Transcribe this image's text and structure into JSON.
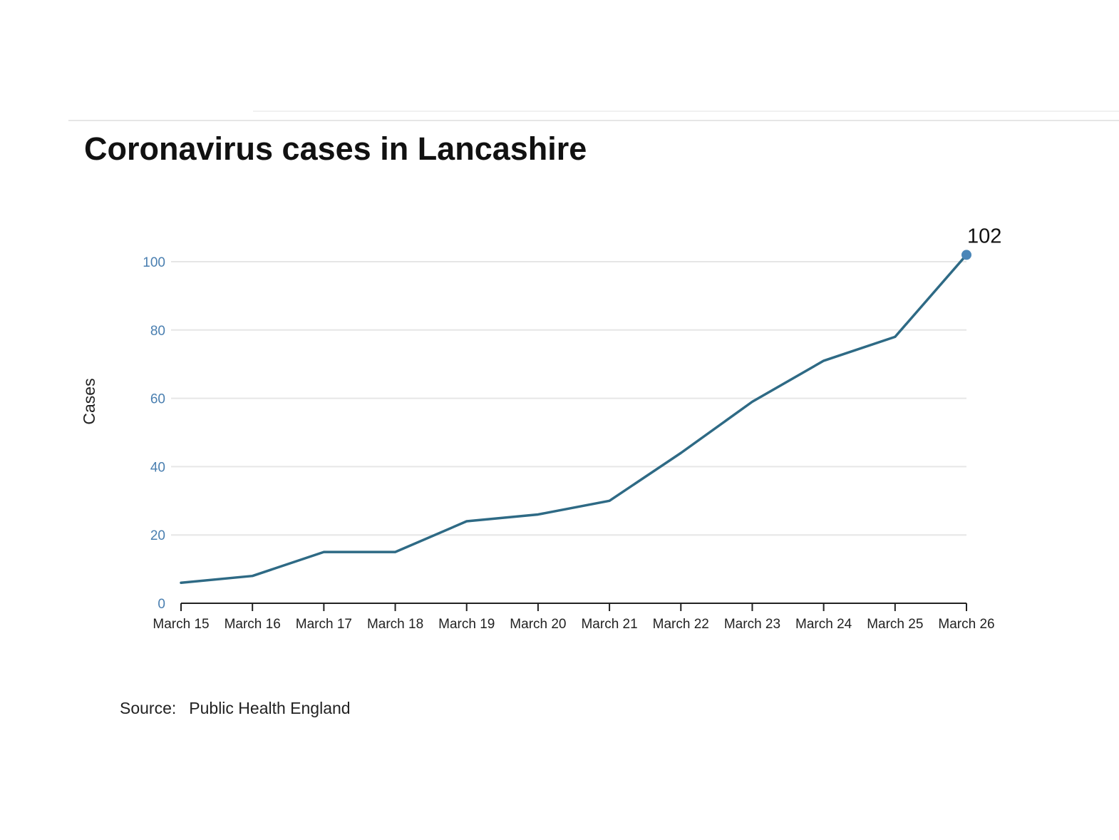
{
  "chart_data": {
    "type": "line",
    "title": "Coronavirus cases in Lancashire",
    "xlabel": "",
    "ylabel": "Cases",
    "categories": [
      "March 15",
      "March 16",
      "March 17",
      "March 18",
      "March 19",
      "March 20",
      "March 21",
      "March 22",
      "March 23",
      "March 24",
      "March 25",
      "March 26"
    ],
    "series": [
      {
        "values": [
          6,
          8,
          15,
          15,
          24,
          26,
          30,
          44,
          59,
          71,
          78,
          102
        ]
      }
    ],
    "ylim": [
      0,
      100
    ],
    "yticks": [
      0,
      20,
      40,
      60,
      80,
      100
    ],
    "grid": true,
    "annotations": [
      {
        "category": "March 26",
        "text": "102"
      }
    ],
    "colors": {
      "line": "#2e6a85",
      "marker": "#4a86b8",
      "ytick": "#4a7fb0",
      "grid": "#e6e6e6",
      "axis": "#222222"
    }
  },
  "source": {
    "label": "Source:",
    "value": "Public Health England"
  }
}
